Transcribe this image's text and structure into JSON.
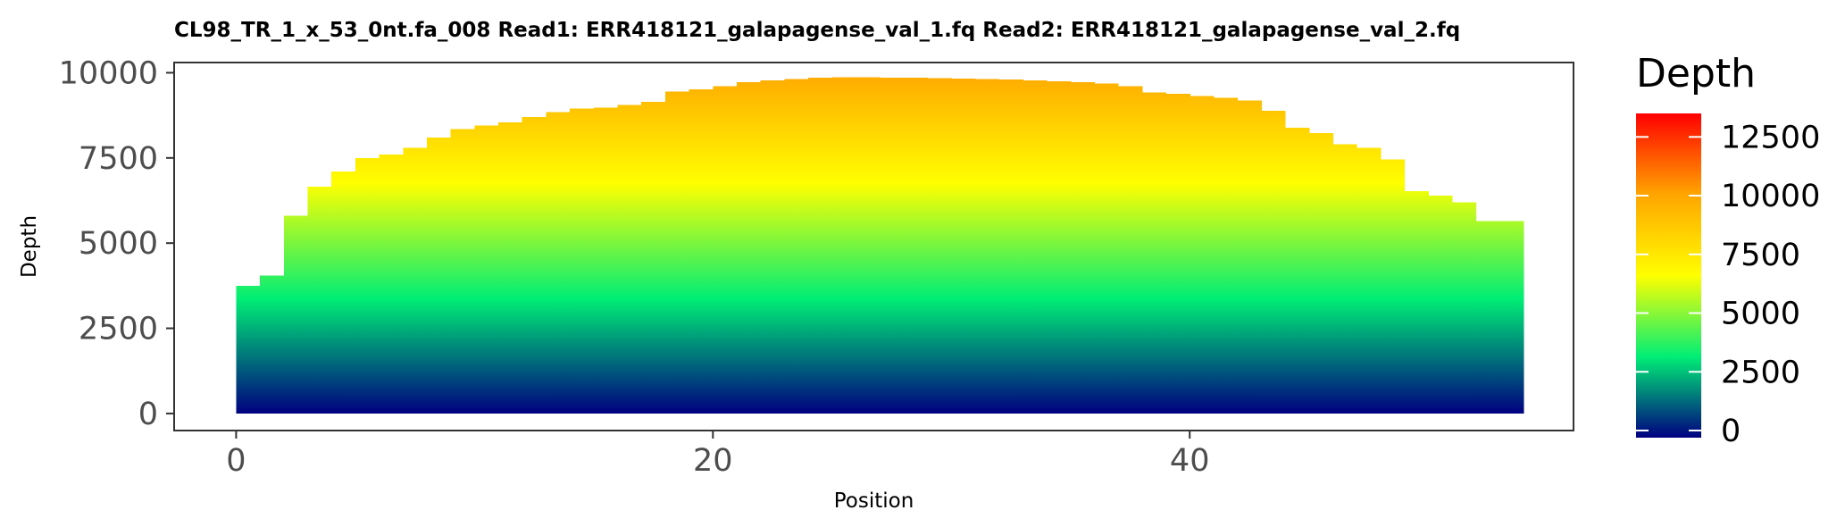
{
  "chart_data": {
    "type": "area",
    "title": "CL98_TR_1_x_53_0nt.fa_008   Read1: ERR418121_galapagense_val_1.fq   Read2: ERR418121_galapagense_val_2.fq",
    "xlabel": "Position",
    "ylabel": "Depth",
    "xlim": [
      -2.6,
      56.1
    ],
    "ylim": [
      -500,
      10300
    ],
    "x_ticks": [
      0,
      20,
      40
    ],
    "y_ticks": [
      0,
      2500,
      5000,
      7500,
      10000
    ],
    "step": true,
    "grid": false,
    "fill": "vertical gradient by depth",
    "x": [
      0,
      1,
      2,
      3,
      4,
      5,
      6,
      7,
      8,
      9,
      10,
      11,
      12,
      13,
      14,
      15,
      16,
      17,
      18,
      19,
      20,
      21,
      22,
      23,
      24,
      25,
      26,
      27,
      28,
      29,
      30,
      31,
      32,
      33,
      34,
      35,
      36,
      37,
      38,
      39,
      40,
      41,
      42,
      43,
      44,
      45,
      46,
      47,
      48,
      49,
      50,
      51,
      52,
      53
    ],
    "values": [
      3750,
      4050,
      5800,
      6650,
      7100,
      7500,
      7600,
      7800,
      8100,
      8350,
      8450,
      8550,
      8700,
      8850,
      8950,
      8980,
      9050,
      9150,
      9450,
      9520,
      9600,
      9720,
      9780,
      9820,
      9850,
      9870,
      9870,
      9860,
      9850,
      9840,
      9830,
      9820,
      9800,
      9780,
      9750,
      9720,
      9690,
      9600,
      9420,
      9380,
      9320,
      9270,
      9180,
      8880,
      8380,
      8230,
      7900,
      7800,
      7450,
      6520,
      6400,
      6200,
      5650,
      5650
    ],
    "legend": {
      "title": "Depth",
      "position": "right",
      "type": "colorbar",
      "limits": [
        0,
        13500
      ],
      "breaks": [
        0,
        2500,
        5000,
        7500,
        10000,
        12500
      ],
      "colors": [
        "#000080",
        "#00ee76",
        "#ffff00",
        "#ffa500",
        "#ff0000"
      ]
    }
  }
}
